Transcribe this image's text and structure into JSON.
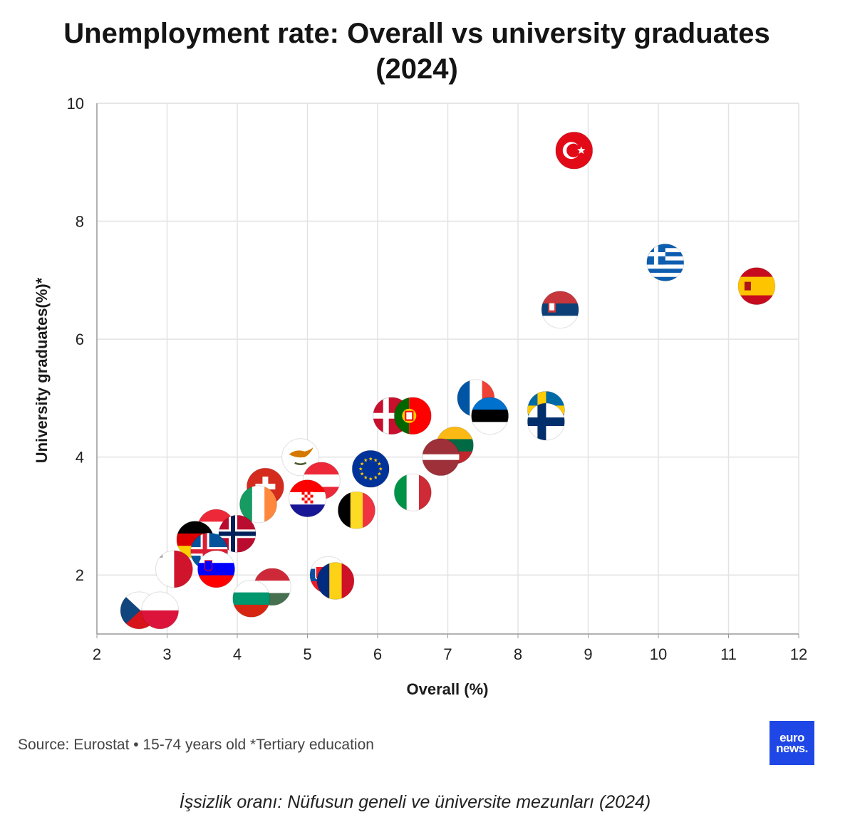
{
  "title": "Unemployment rate: Overall vs university graduates (2024)",
  "source": "Source: Eurostat • 15-74 years old *Tertiary education",
  "logo": {
    "line1": "euro",
    "line2": "news."
  },
  "caption": "İşsizlik oranı: Nüfusun geneli ve üniversite mezunları (2024)",
  "chart_data": {
    "type": "scatter",
    "xlabel": "Overall (%)",
    "ylabel": "University graduates(%)*",
    "xlim": [
      2,
      12
    ],
    "ylim": [
      1,
      10
    ],
    "xticks": [
      2,
      3,
      4,
      5,
      6,
      7,
      8,
      9,
      10,
      11,
      12
    ],
    "yticks": [
      2,
      4,
      6,
      8,
      10
    ],
    "grid": true,
    "points": [
      {
        "country": "Türkiye",
        "x": 8.8,
        "y": 9.2,
        "flag": "tr"
      },
      {
        "country": "Greece",
        "x": 10.1,
        "y": 7.3,
        "flag": "gr"
      },
      {
        "country": "Spain",
        "x": 11.4,
        "y": 6.9,
        "flag": "es"
      },
      {
        "country": "Serbia",
        "x": 8.6,
        "y": 6.5,
        "flag": "rs"
      },
      {
        "country": "France",
        "x": 7.4,
        "y": 5.0,
        "flag": "fr"
      },
      {
        "country": "Sweden",
        "x": 8.4,
        "y": 4.8,
        "flag": "se"
      },
      {
        "country": "Estonia",
        "x": 7.6,
        "y": 4.7,
        "flag": "ee"
      },
      {
        "country": "Finland",
        "x": 8.4,
        "y": 4.6,
        "flag": "fi"
      },
      {
        "country": "Denmark",
        "x": 6.2,
        "y": 4.7,
        "flag": "dk"
      },
      {
        "country": "Portugal",
        "x": 6.5,
        "y": 4.7,
        "flag": "pt"
      },
      {
        "country": "Lithuania",
        "x": 7.1,
        "y": 4.2,
        "flag": "lt"
      },
      {
        "country": "Latvia",
        "x": 6.9,
        "y": 4.0,
        "flag": "lv"
      },
      {
        "country": "Cyprus",
        "x": 4.9,
        "y": 4.0,
        "flag": "cy"
      },
      {
        "country": "European Union",
        "x": 5.9,
        "y": 3.8,
        "flag": "eu"
      },
      {
        "country": "Austria",
        "x": 5.2,
        "y": 3.6,
        "flag": "at"
      },
      {
        "country": "Switzerland",
        "x": 4.4,
        "y": 3.5,
        "flag": "ch"
      },
      {
        "country": "Italy",
        "x": 6.5,
        "y": 3.4,
        "flag": "it"
      },
      {
        "country": "Croatia",
        "x": 5.0,
        "y": 3.3,
        "flag": "hr"
      },
      {
        "country": "Ireland",
        "x": 4.3,
        "y": 3.2,
        "flag": "ie"
      },
      {
        "country": "Belgium",
        "x": 5.7,
        "y": 3.1,
        "flag": "be"
      },
      {
        "country": "Luxembourg",
        "x": 3.7,
        "y": 2.8,
        "flag": "lu"
      },
      {
        "country": "Norway",
        "x": 4.0,
        "y": 2.7,
        "flag": "no"
      },
      {
        "country": "Germany",
        "x": 3.4,
        "y": 2.6,
        "flag": "de"
      },
      {
        "country": "Iceland",
        "x": 3.6,
        "y": 2.4,
        "flag": "is"
      },
      {
        "country": "Malta",
        "x": 3.1,
        "y": 2.1,
        "flag": "mt"
      },
      {
        "country": "Slovenia",
        "x": 3.7,
        "y": 2.1,
        "flag": "si"
      },
      {
        "country": "Slovakia",
        "x": 5.3,
        "y": 2.0,
        "flag": "sk"
      },
      {
        "country": "Romania",
        "x": 5.4,
        "y": 1.9,
        "flag": "ro"
      },
      {
        "country": "Hungary",
        "x": 4.5,
        "y": 1.8,
        "flag": "hu"
      },
      {
        "country": "Bulgaria",
        "x": 4.2,
        "y": 1.6,
        "flag": "bg"
      },
      {
        "country": "Czechia",
        "x": 2.6,
        "y": 1.4,
        "flag": "cz"
      },
      {
        "country": "Poland",
        "x": 2.9,
        "y": 1.4,
        "flag": "pl"
      }
    ]
  }
}
